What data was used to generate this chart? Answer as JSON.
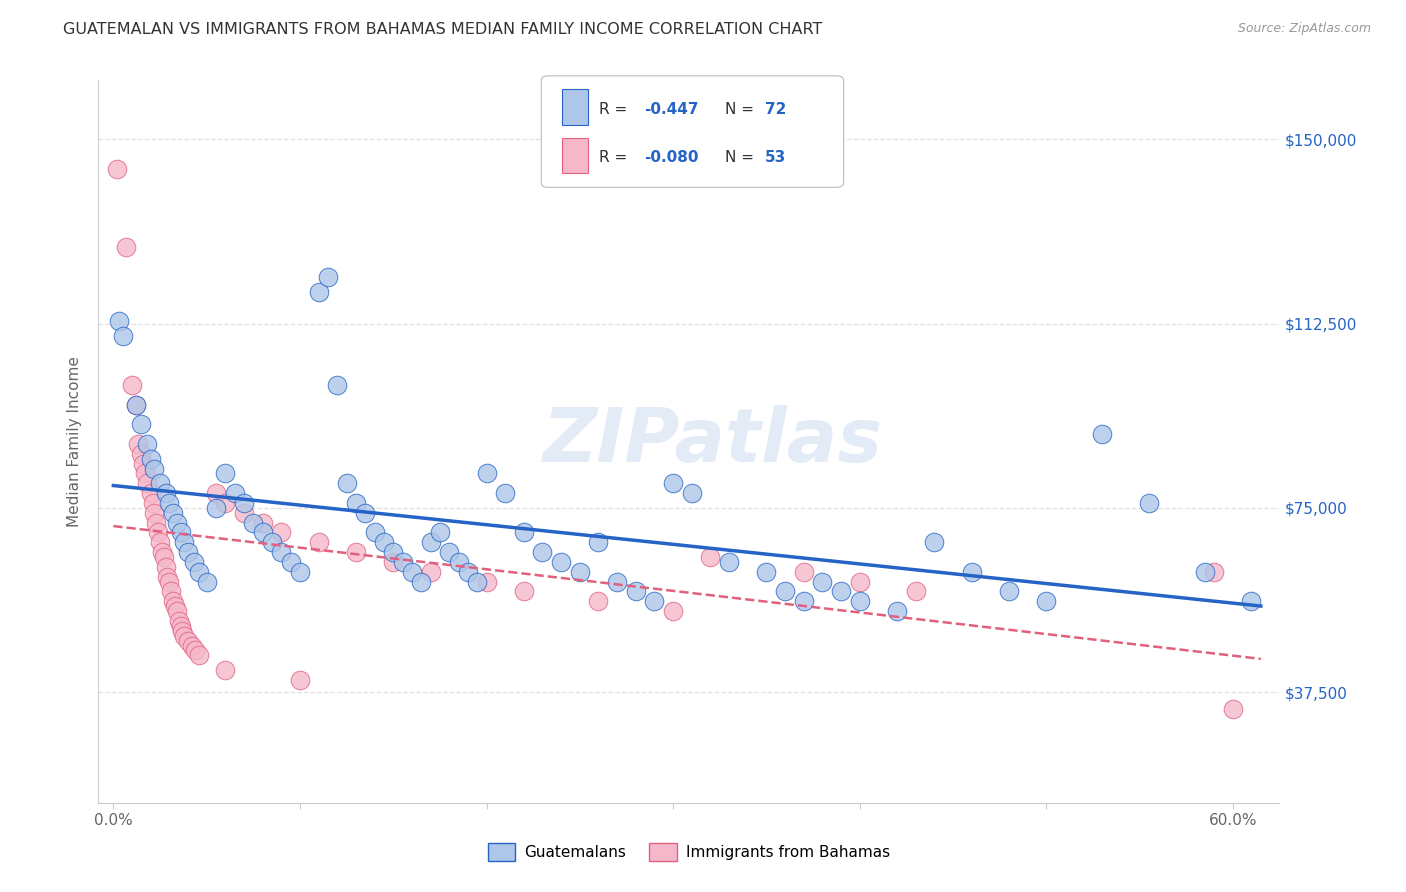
{
  "title": "GUATEMALAN VS IMMIGRANTS FROM BAHAMAS MEDIAN FAMILY INCOME CORRELATION CHART",
  "source": "Source: ZipAtlas.com",
  "ylabel": "Median Family Income",
  "legend_label1": "Guatemalans",
  "legend_label2": "Immigrants from Bahamas",
  "r1": -0.447,
  "n1": 72,
  "r2": -0.08,
  "n2": 53,
  "color1": "#aec6e8",
  "color2": "#f5b8cb",
  "line_color1": "#2563c7",
  "line_color2": "#e0607e",
  "watermark": "ZIPatlas",
  "ytick_pos": [
    37500,
    75000,
    112500,
    150000
  ],
  "ytick_labels": [
    "$37,500",
    "$75,000",
    "$112,500",
    "$150,000"
  ],
  "xtick_pos": [
    0.0,
    0.1,
    0.2,
    0.3,
    0.4,
    0.5,
    0.6
  ],
  "xtick_labels": [
    "0.0%",
    "",
    "",
    "",
    "",
    "",
    "60.0%"
  ],
  "xmin": -0.008,
  "xmax": 0.625,
  "ymin": 15000,
  "ymax": 162000,
  "blue_points": [
    [
      0.003,
      113000
    ],
    [
      0.005,
      110000
    ],
    [
      0.012,
      96000
    ],
    [
      0.015,
      92000
    ],
    [
      0.018,
      88000
    ],
    [
      0.02,
      85000
    ],
    [
      0.022,
      83000
    ],
    [
      0.025,
      80000
    ],
    [
      0.028,
      78000
    ],
    [
      0.03,
      76000
    ],
    [
      0.032,
      74000
    ],
    [
      0.034,
      72000
    ],
    [
      0.036,
      70000
    ],
    [
      0.038,
      68000
    ],
    [
      0.04,
      66000
    ],
    [
      0.043,
      64000
    ],
    [
      0.046,
      62000
    ],
    [
      0.05,
      60000
    ],
    [
      0.055,
      75000
    ],
    [
      0.06,
      82000
    ],
    [
      0.065,
      78000
    ],
    [
      0.07,
      76000
    ],
    [
      0.075,
      72000
    ],
    [
      0.08,
      70000
    ],
    [
      0.085,
      68000
    ],
    [
      0.09,
      66000
    ],
    [
      0.095,
      64000
    ],
    [
      0.1,
      62000
    ],
    [
      0.11,
      119000
    ],
    [
      0.115,
      122000
    ],
    [
      0.12,
      100000
    ],
    [
      0.125,
      80000
    ],
    [
      0.13,
      76000
    ],
    [
      0.135,
      74000
    ],
    [
      0.14,
      70000
    ],
    [
      0.145,
      68000
    ],
    [
      0.15,
      66000
    ],
    [
      0.155,
      64000
    ],
    [
      0.16,
      62000
    ],
    [
      0.165,
      60000
    ],
    [
      0.17,
      68000
    ],
    [
      0.175,
      70000
    ],
    [
      0.18,
      66000
    ],
    [
      0.185,
      64000
    ],
    [
      0.19,
      62000
    ],
    [
      0.195,
      60000
    ],
    [
      0.2,
      82000
    ],
    [
      0.21,
      78000
    ],
    [
      0.22,
      70000
    ],
    [
      0.23,
      66000
    ],
    [
      0.24,
      64000
    ],
    [
      0.25,
      62000
    ],
    [
      0.26,
      68000
    ],
    [
      0.27,
      60000
    ],
    [
      0.28,
      58000
    ],
    [
      0.29,
      56000
    ],
    [
      0.3,
      80000
    ],
    [
      0.31,
      78000
    ],
    [
      0.33,
      64000
    ],
    [
      0.35,
      62000
    ],
    [
      0.36,
      58000
    ],
    [
      0.37,
      56000
    ],
    [
      0.38,
      60000
    ],
    [
      0.39,
      58000
    ],
    [
      0.4,
      56000
    ],
    [
      0.42,
      54000
    ],
    [
      0.44,
      68000
    ],
    [
      0.46,
      62000
    ],
    [
      0.48,
      58000
    ],
    [
      0.5,
      56000
    ],
    [
      0.53,
      90000
    ],
    [
      0.555,
      76000
    ],
    [
      0.585,
      62000
    ],
    [
      0.61,
      56000
    ]
  ],
  "pink_points": [
    [
      0.002,
      144000
    ],
    [
      0.007,
      128000
    ],
    [
      0.01,
      100000
    ],
    [
      0.012,
      96000
    ],
    [
      0.013,
      88000
    ],
    [
      0.015,
      86000
    ],
    [
      0.016,
      84000
    ],
    [
      0.017,
      82000
    ],
    [
      0.018,
      80000
    ],
    [
      0.02,
      78000
    ],
    [
      0.021,
      76000
    ],
    [
      0.022,
      74000
    ],
    [
      0.023,
      72000
    ],
    [
      0.024,
      70000
    ],
    [
      0.025,
      68000
    ],
    [
      0.026,
      66000
    ],
    [
      0.027,
      65000
    ],
    [
      0.028,
      63000
    ],
    [
      0.029,
      61000
    ],
    [
      0.03,
      60000
    ],
    [
      0.031,
      58000
    ],
    [
      0.032,
      56000
    ],
    [
      0.033,
      55000
    ],
    [
      0.034,
      54000
    ],
    [
      0.035,
      52000
    ],
    [
      0.036,
      51000
    ],
    [
      0.037,
      50000
    ],
    [
      0.038,
      49000
    ],
    [
      0.04,
      48000
    ],
    [
      0.042,
      47000
    ],
    [
      0.044,
      46000
    ],
    [
      0.046,
      45000
    ],
    [
      0.055,
      78000
    ],
    [
      0.06,
      76000
    ],
    [
      0.07,
      74000
    ],
    [
      0.08,
      72000
    ],
    [
      0.09,
      70000
    ],
    [
      0.11,
      68000
    ],
    [
      0.13,
      66000
    ],
    [
      0.15,
      64000
    ],
    [
      0.17,
      62000
    ],
    [
      0.2,
      60000
    ],
    [
      0.22,
      58000
    ],
    [
      0.26,
      56000
    ],
    [
      0.3,
      54000
    ],
    [
      0.32,
      65000
    ],
    [
      0.37,
      62000
    ],
    [
      0.4,
      60000
    ],
    [
      0.43,
      58000
    ],
    [
      0.06,
      42000
    ],
    [
      0.1,
      40000
    ],
    [
      0.6,
      34000
    ],
    [
      0.59,
      62000
    ]
  ],
  "title_color": "#333333",
  "source_color": "#999999",
  "grid_color": "#e0e0e0",
  "spine_color": "#cccccc",
  "background_color": "#ffffff"
}
